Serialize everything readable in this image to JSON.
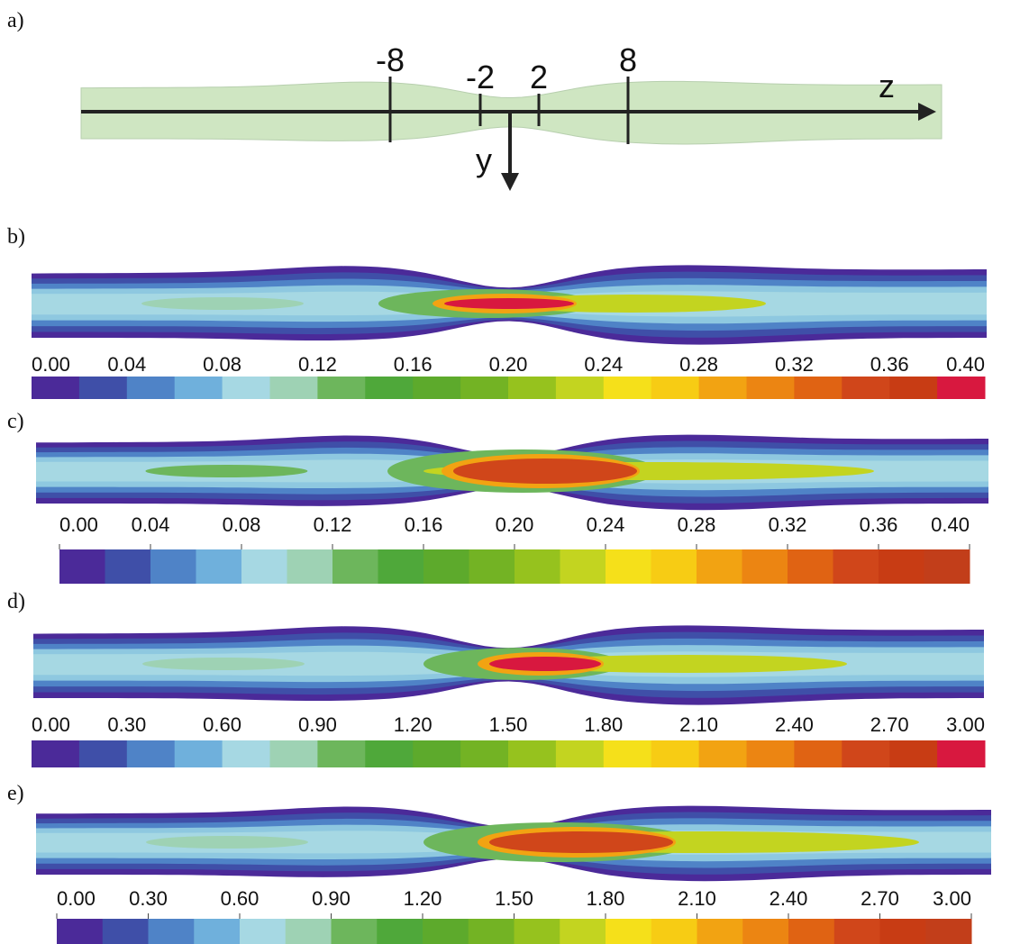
{
  "panels": [
    {
      "label": "a)",
      "markers": [
        "-8",
        "-2",
        "2",
        "8"
      ],
      "z_label": "z",
      "y_label": "y"
    },
    {
      "label": "b)",
      "colorbar_ticks": [
        "0.00",
        "0.04",
        "0.08",
        "0.12",
        "0.16",
        "0.20",
        "0.24",
        "0.28",
        "0.32",
        "0.36",
        "0.40"
      ]
    },
    {
      "label": "c)",
      "colorbar_ticks": [
        "0.00",
        "0.04",
        "0.08",
        "0.12",
        "0.16",
        "0.20",
        "0.24",
        "0.28",
        "0.32",
        "0.36",
        "0.40"
      ]
    },
    {
      "label": "d)",
      "colorbar_ticks": [
        "0.00",
        "0.30",
        "0.60",
        "0.90",
        "1.20",
        "1.50",
        "1.80",
        "2.10",
        "2.40",
        "2.70",
        "3.00"
      ]
    },
    {
      "label": "e)",
      "colorbar_ticks": [
        "0.00",
        "0.30",
        "0.60",
        "0.90",
        "1.20",
        "1.50",
        "1.80",
        "2.10",
        "2.40",
        "2.70",
        "3.00"
      ]
    }
  ]
}
